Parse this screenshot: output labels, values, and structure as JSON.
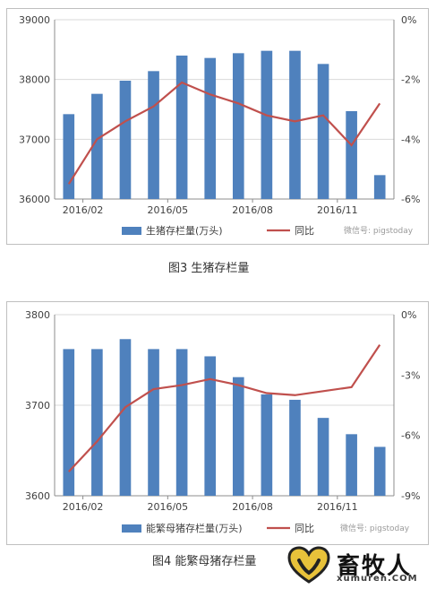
{
  "chart_data": [
    {
      "type": "bar",
      "caption": "图3 生猪存栏量",
      "categories": [
        "2016/01",
        "2016/02",
        "2016/03",
        "2016/04",
        "2016/05",
        "2016/06",
        "2016/07",
        "2016/08",
        "2016/09",
        "2016/10",
        "2016/11",
        "2016/12"
      ],
      "x_tick_labels": [
        "2016/02",
        "2016/05",
        "2016/08",
        "2016/11"
      ],
      "series": [
        {
          "name": "生猪存栏量(万头)",
          "axis": "left",
          "type": "bar",
          "color": "#4f81bd",
          "values": [
            37420,
            37760,
            37980,
            38140,
            38400,
            38360,
            38440,
            38480,
            38480,
            38260,
            37470,
            36400
          ]
        },
        {
          "name": "同比",
          "axis": "right",
          "type": "line",
          "color": "#c0504d",
          "values": [
            -5.5,
            -4.0,
            -3.4,
            -2.9,
            -2.1,
            -2.5,
            -2.8,
            -3.2,
            -3.4,
            -3.2,
            -4.2,
            -2.8
          ]
        }
      ],
      "ylim_left": [
        36000,
        39000
      ],
      "yticks_left": [
        "36000",
        "37000",
        "38000",
        "39000"
      ],
      "ylim_right": [
        -6,
        0
      ],
      "yticks_right": [
        "-6%",
        "-4%",
        "-2%",
        "0%"
      ],
      "legend_position": "bottom"
    },
    {
      "type": "bar",
      "caption": "图4 能繁母猪存栏量",
      "categories": [
        "2016/01",
        "2016/02",
        "2016/03",
        "2016/04",
        "2016/05",
        "2016/06",
        "2016/07",
        "2016/08",
        "2016/09",
        "2016/10",
        "2016/11",
        "2016/12"
      ],
      "x_tick_labels": [
        "2016/02",
        "2016/05",
        "2016/08",
        "2016/11"
      ],
      "series": [
        {
          "name": "能繁母猪存栏量(万头)",
          "axis": "left",
          "type": "bar",
          "color": "#4f81bd",
          "values": [
            3762,
            3762,
            3773,
            3762,
            3762,
            3754,
            3731,
            3712,
            3706,
            3686,
            3668,
            3654
          ]
        },
        {
          "name": "同比",
          "axis": "right",
          "type": "line",
          "color": "#c0504d",
          "values": [
            -7.8,
            -6.3,
            -4.6,
            -3.7,
            -3.5,
            -3.2,
            -3.5,
            -3.9,
            -4.0,
            -3.8,
            -3.6,
            -1.5
          ]
        }
      ],
      "ylim_left": [
        3600,
        3800
      ],
      "yticks_left": [
        "3600",
        "3700",
        "3800"
      ],
      "ylim_right": [
        -9,
        0
      ],
      "yticks_right": [
        "-9%",
        "-6%",
        "-3%",
        "0%"
      ],
      "legend_position": "bottom"
    }
  ],
  "watermark": "微信号: pigstoday",
  "logo": {
    "name": "畜牧人",
    "url": "xumuren.COM",
    "icon": "heart-logo-icon"
  }
}
